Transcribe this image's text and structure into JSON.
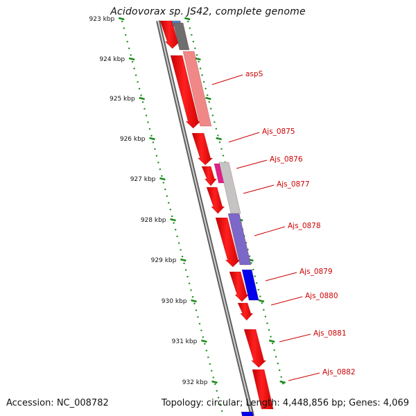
{
  "title": "Acidovorax sp. JS42, complete genome",
  "footer": {
    "accession": "Accession: NC_008782",
    "summary": "Topology: circular; Length: 4,448,856 bp; Genes: 4,069"
  },
  "axis": {
    "unit": "kbp",
    "ticks": [
      "923 kbp",
      "924 kbp",
      "925 kbp",
      "926 kbp",
      "927 kbp",
      "928 kbp",
      "929 kbp",
      "930 kbp",
      "931 kbp",
      "932 kbp"
    ]
  },
  "colors": {
    "forward_cds": "#ff0000",
    "backbone": "#888888",
    "tick_mark": "#1a8a1a",
    "label": "#cc0000"
  },
  "genes": [
    {
      "label": "aspS"
    },
    {
      "label": "Ajs_0875"
    },
    {
      "label": "Ajs_0876"
    },
    {
      "label": "Ajs_0877"
    },
    {
      "label": "Ajs_0878"
    },
    {
      "label": "Ajs_0879"
    },
    {
      "label": "Ajs_0880"
    },
    {
      "label": "Ajs_0881"
    },
    {
      "label": "Ajs_0882"
    }
  ]
}
